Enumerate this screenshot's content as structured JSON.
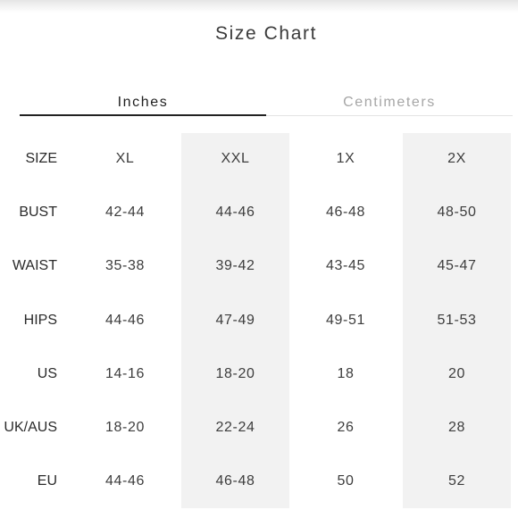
{
  "title": "Size Chart",
  "tabs": [
    {
      "label": "Inches",
      "active": true
    },
    {
      "label": "Centimeters",
      "active": false
    }
  ],
  "colors": {
    "active_tab_underline": "#222222",
    "inactive_tab_text": "#a6a6a6",
    "shaded_column": "#f2f2f2"
  },
  "table": {
    "rows": [
      {
        "label": "SIZE",
        "values": [
          "XL",
          "XXL",
          "1X",
          "2X"
        ]
      },
      {
        "label": "BUST",
        "values": [
          "42-44",
          "44-46",
          "46-48",
          "48-50"
        ]
      },
      {
        "label": "WAIST",
        "values": [
          "35-38",
          "39-42",
          "43-45",
          "45-47"
        ]
      },
      {
        "label": "HIPS",
        "values": [
          "44-46",
          "47-49",
          "49-51",
          "51-53"
        ]
      },
      {
        "label": "US",
        "values": [
          "14-16",
          "18-20",
          "18",
          "20"
        ]
      },
      {
        "label": "UK/AUS",
        "values": [
          "18-20",
          "22-24",
          "26",
          "28"
        ]
      },
      {
        "label": "EU",
        "values": [
          "44-46",
          "46-48",
          "50",
          "52"
        ]
      }
    ]
  }
}
